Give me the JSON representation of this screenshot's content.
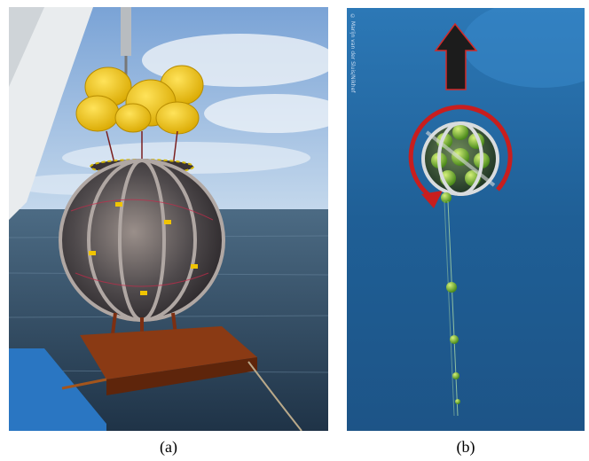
{
  "panels": [
    {
      "id": "a",
      "caption": "(a)",
      "subject": "Spherical optical module frame with yellow buoys lifted by crane over sea"
    },
    {
      "id": "b",
      "caption": "(b)",
      "subject": "Illustration of module underwater with upward arrow and rotation arrow"
    }
  ],
  "credit_text": "© Marijn van der Sluis/Nikhef",
  "colors": {
    "sky": "#8fb6e0",
    "sea": "#2e4a63",
    "buoy": "#f5c400",
    "rust": "#8a3a14",
    "deep_blue": "#1d5c8f",
    "arrow_red": "#c81e1e",
    "sphere_green": "#8fcf3a"
  }
}
